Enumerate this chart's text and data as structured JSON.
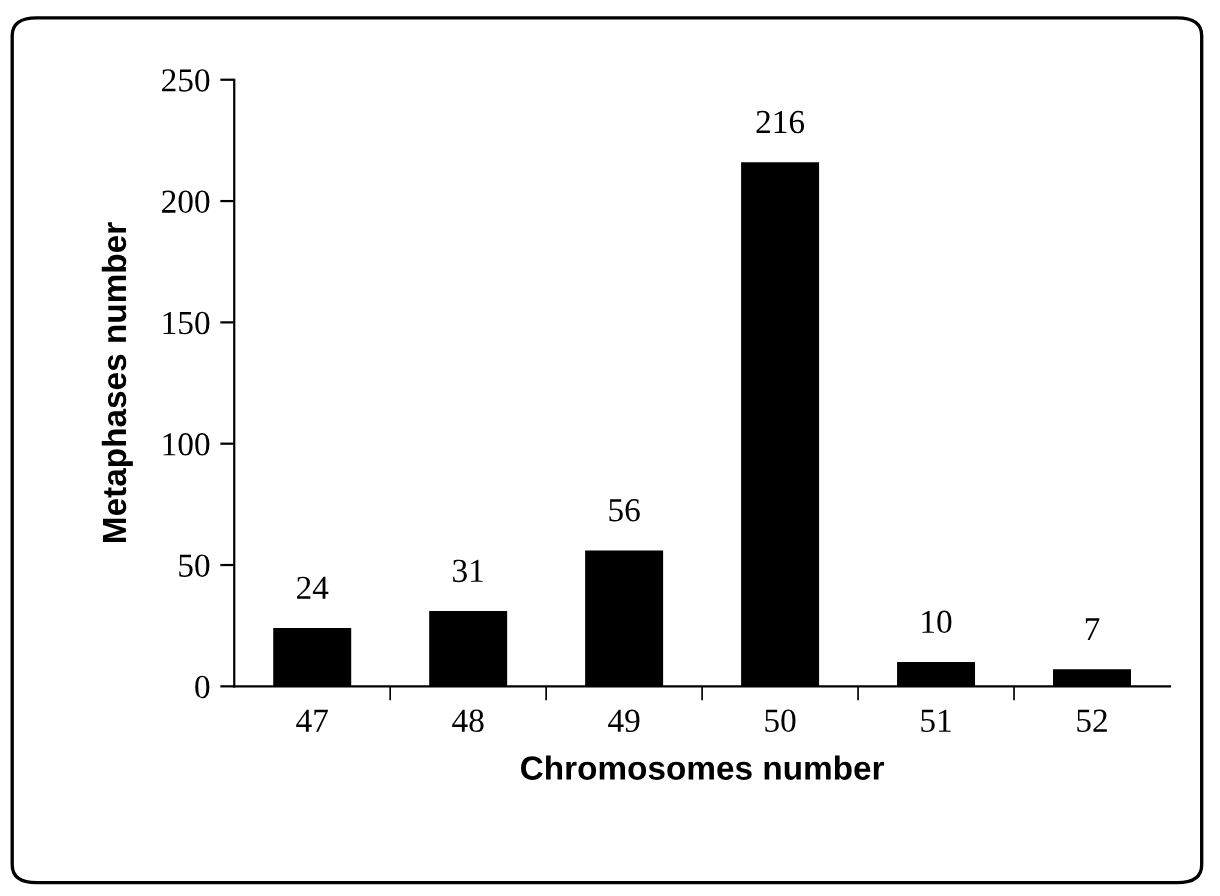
{
  "chart_data": {
    "type": "bar",
    "xlabel": "Chromosomes number",
    "ylabel": "Metaphases number",
    "categories": [
      "47",
      "48",
      "49",
      "50",
      "51",
      "52"
    ],
    "values": [
      24,
      31,
      56,
      216,
      10,
      7
    ],
    "color": "#000000",
    "ylim": [
      0,
      250
    ],
    "yticks": [
      0,
      50,
      100,
      150,
      200,
      250
    ],
    "data_labels": true
  }
}
